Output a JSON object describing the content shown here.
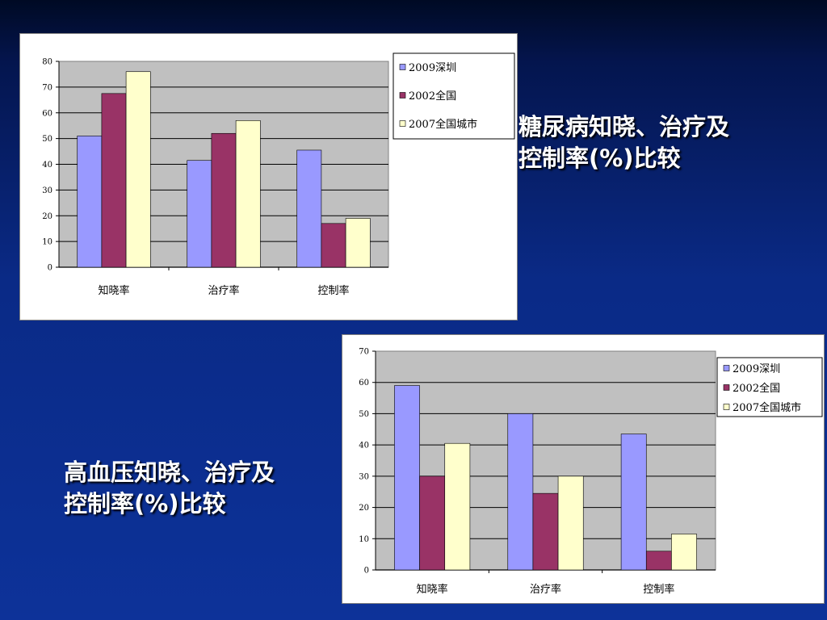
{
  "slide": {
    "title1_line1": "糖尿病知晓、治疗及",
    "title1_line2": "控制率(%)比较",
    "title2_line1": "高血压知晓、治疗及",
    "title2_line2": "控制率(%)比较"
  },
  "colors": {
    "series": [
      "#9999ff",
      "#993366",
      "#ffffcc"
    ],
    "plot_bg": "#c0c0c0"
  },
  "chart_data": [
    {
      "type": "bar",
      "categories": [
        "知晓率",
        "治疗率",
        "控制率"
      ],
      "series": [
        {
          "name": "2009深圳",
          "values": [
            51,
            41.5,
            45.5
          ]
        },
        {
          "name": "2002全国",
          "values": [
            67.5,
            52,
            17
          ]
        },
        {
          "name": "2007全国城市",
          "values": [
            76,
            57,
            19
          ]
        }
      ],
      "ylim": [
        0,
        80
      ],
      "yticks": [
        0,
        10,
        20,
        30,
        40,
        50,
        60,
        70,
        80
      ],
      "grid": true,
      "legend": "right-top"
    },
    {
      "type": "bar",
      "categories": [
        "知晓率",
        "治疗率",
        "控制率"
      ],
      "series": [
        {
          "name": "2009深圳",
          "values": [
            59,
            50,
            43.5
          ]
        },
        {
          "name": "2002全国",
          "values": [
            30,
            24.5,
            6
          ]
        },
        {
          "name": "2007全国城市",
          "values": [
            40.5,
            30,
            11.5
          ]
        }
      ],
      "ylim": [
        0,
        70
      ],
      "yticks": [
        0,
        10,
        20,
        30,
        40,
        50,
        60,
        70
      ],
      "grid": true,
      "legend": "right-top"
    }
  ]
}
